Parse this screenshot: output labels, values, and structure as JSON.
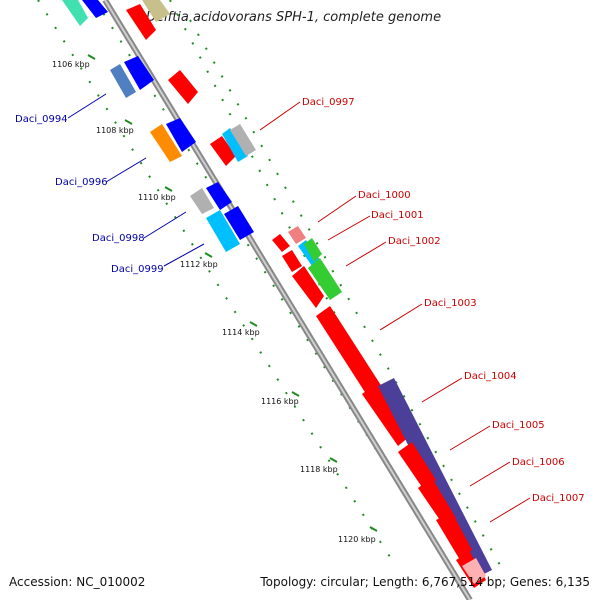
{
  "title": "Delftia acidovorans SPH-1, complete genome",
  "footer": {
    "accession": "Accession: NC_010002",
    "info": "Topology: circular; Length: 6,767,514 bp; Genes: 6,135"
  },
  "scale_labels": [
    "1106 kbp",
    "1108 kbp",
    "1110 kbp",
    "1112 kbp",
    "1114 kbp",
    "1116 kbp",
    "1118 kbp",
    "1120 kbp"
  ],
  "genes_forward_labels": [
    "Daci_0997",
    "Daci_1000",
    "Daci_1001",
    "Daci_1002",
    "Daci_1003",
    "Daci_1004",
    "Daci_1005",
    "Daci_1006",
    "Daci_1007"
  ],
  "genes_reverse_labels": [
    "Daci_0994",
    "Daci_0996",
    "Daci_0998",
    "Daci_0999"
  ],
  "colors": {
    "red": "#ff0000",
    "blue": "#0000ff",
    "navy": "#4b3f99",
    "cyan": "#00bfff",
    "green": "#33cc33",
    "orange": "#ff8c00",
    "gray": "#b0b0b0",
    "teal": "#40e0b0",
    "pink": "#f08080",
    "tick": "#228b22",
    "backbone": "#888888"
  }
}
